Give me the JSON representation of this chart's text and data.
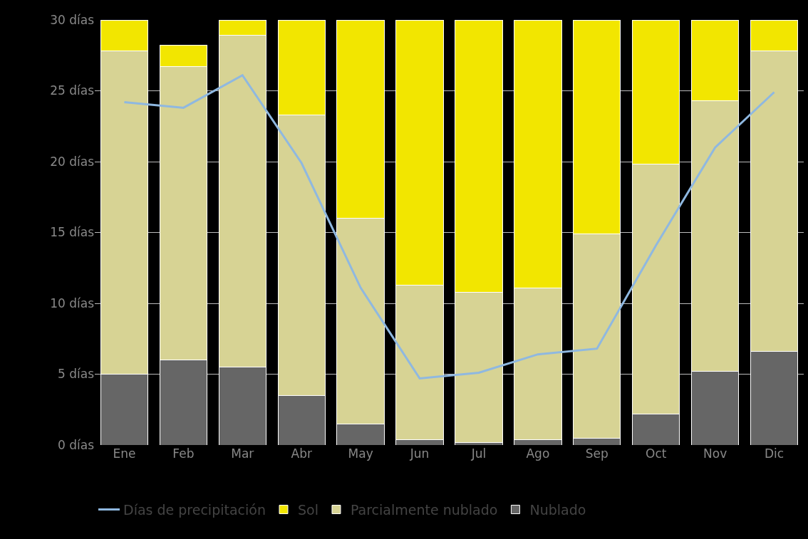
{
  "chart_data": {
    "type": "bar",
    "stacked": true,
    "categories": [
      "Ene",
      "Feb",
      "Mar",
      "Abr",
      "May",
      "Jun",
      "Jul",
      "Ago",
      "Sep",
      "Oct",
      "Nov",
      "Dic"
    ],
    "series": [
      {
        "name": "Nublado",
        "color": "#666666",
        "values": [
          5.0,
          6.0,
          5.5,
          3.5,
          1.5,
          0.4,
          0.2,
          0.4,
          0.5,
          2.2,
          5.2,
          6.6
        ]
      },
      {
        "name": "Parcialmente nublado",
        "color": "#d7d394",
        "values": [
          22.8,
          20.7,
          23.4,
          19.8,
          14.5,
          10.9,
          10.6,
          10.7,
          14.4,
          17.6,
          19.1,
          21.2
        ]
      },
      {
        "name": "Sol",
        "color": "#f2e600",
        "values": [
          2.2,
          1.5,
          1.1,
          6.7,
          14.0,
          18.7,
          19.2,
          18.9,
          15.1,
          10.2,
          5.7,
          2.2
        ]
      },
      {
        "name": "Días de precipitación",
        "type": "line",
        "color": "#8fb8e0",
        "values": [
          24.2,
          23.8,
          26.1,
          19.9,
          11.1,
          4.7,
          5.1,
          6.4,
          6.8,
          14.1,
          21.0,
          24.9
        ]
      }
    ],
    "ylim": [
      0,
      30
    ],
    "yticks": [
      {
        "value": 0,
        "label": "0 días"
      },
      {
        "value": 5,
        "label": "5 días"
      },
      {
        "value": 10,
        "label": "10 días"
      },
      {
        "value": 15,
        "label": "15 días"
      },
      {
        "value": 20,
        "label": "20 días"
      },
      {
        "value": 25,
        "label": "25 días"
      },
      {
        "value": 30,
        "label": "30 días"
      }
    ],
    "grid": "y",
    "legend": "bottom",
    "marker": "none",
    "line_style": "solid"
  }
}
